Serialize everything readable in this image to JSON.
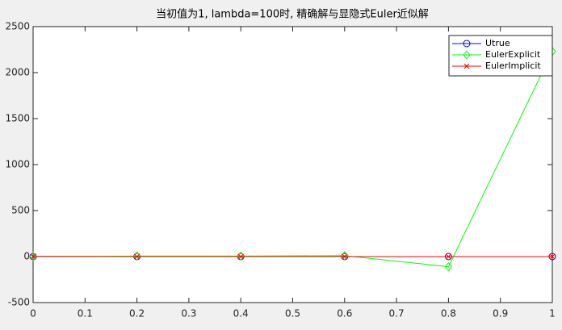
{
  "chart_data": {
    "type": "line",
    "title": "当初值为1, lambda=100时, 精确解与显隐式Euler近似解",
    "x": [
      0,
      0.2,
      0.4,
      0.6,
      0.8,
      1
    ],
    "series": [
      {
        "name": "Utrue",
        "color": "#0000ff",
        "marker": "circle",
        "values": [
          1,
          0,
          0,
          0,
          0,
          0
        ]
      },
      {
        "name": "EulerExplicit",
        "color": "#00ff00",
        "marker": "diamond",
        "values": [
          1,
          5,
          5,
          10,
          -110,
          2230
        ]
      },
      {
        "name": "EulerImplicit",
        "color": "#ff0000",
        "marker": "x",
        "values": [
          1,
          0,
          0,
          0,
          0,
          0
        ]
      }
    ],
    "xlim": [
      0,
      1
    ],
    "xticks": [
      0,
      0.1,
      0.2,
      0.3,
      0.4,
      0.5,
      0.6,
      0.7,
      0.8,
      0.9,
      1
    ],
    "ylim": [
      -500,
      2500
    ],
    "yticks": [
      -500,
      0,
      500,
      1000,
      1500,
      2000,
      2500
    ],
    "grid": false,
    "legend": "northeast"
  }
}
